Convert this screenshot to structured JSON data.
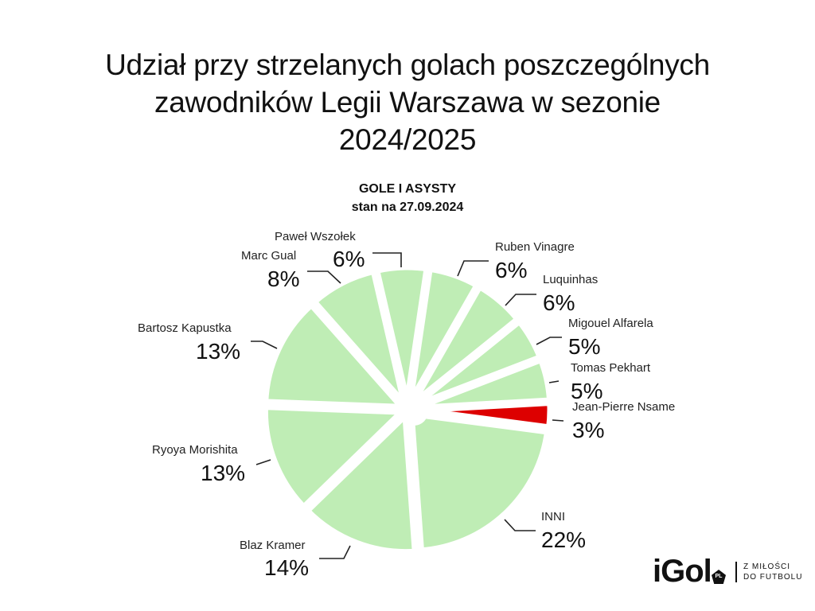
{
  "header": {
    "title_line1": "Udział przy strzelanych golach poszczególnych",
    "title_line2": "zawodników Legii Warszawa w sezonie",
    "title_line3": "2024/2025",
    "subtitle_line1": "GOLE I ASYSTY",
    "subtitle_line2": "stan na 27.09.2024"
  },
  "colors": {
    "slice_default": "#BFEDB5",
    "slice_highlight": "#DD0000",
    "leader_line": "#222222",
    "background": "#FFFFFF"
  },
  "chart_data": {
    "type": "pie",
    "title": "Udział przy strzelanych golach poszczególnych zawodników Legii Warszawa w sezonie 2024/2025",
    "subtitle": "GOLE I ASYSTY — stan na 27.09.2024",
    "unit": "%",
    "start_angle_deg": -13,
    "direction": "clockwise",
    "labels": [
      "Paweł Wszołek",
      "Ruben Vinagre",
      "Luquinhas",
      "Migouel Alfarela",
      "Tomas Pekhart",
      "Jean-Pierre Nsame",
      "INNI",
      "Blaz Kramer",
      "Ryoya Morishita",
      "Bartosz Kapustka",
      "Marc Gual"
    ],
    "values": [
      6,
      6,
      6,
      5,
      5,
      3,
      22,
      14,
      13,
      13,
      8
    ],
    "highlight": "Jean-Pierre Nsame",
    "legend": "none (direct labels)"
  },
  "slices": [
    {
      "name": "Paweł Wszołek",
      "pct": "6%"
    },
    {
      "name": "Ruben Vinagre",
      "pct": "6%"
    },
    {
      "name": "Luquinhas",
      "pct": "6%"
    },
    {
      "name": "Migouel Alfarela",
      "pct": "5%"
    },
    {
      "name": "Tomas Pekhart",
      "pct": "5%"
    },
    {
      "name": "Jean-Pierre Nsame",
      "pct": "3%"
    },
    {
      "name": "INNI",
      "pct": "22%"
    },
    {
      "name": "Blaz Kramer",
      "pct": "14%"
    },
    {
      "name": "Ryoya Morishita",
      "pct": "13%"
    },
    {
      "name": "Bartosz Kapustka",
      "pct": "13%"
    },
    {
      "name": "Marc Gual",
      "pct": "8%"
    }
  ],
  "logo": {
    "brand": "iGol",
    "badge": "PL",
    "tagline_line1": "Z MIŁOŚCI",
    "tagline_line2": "DO FUTBOLU"
  }
}
